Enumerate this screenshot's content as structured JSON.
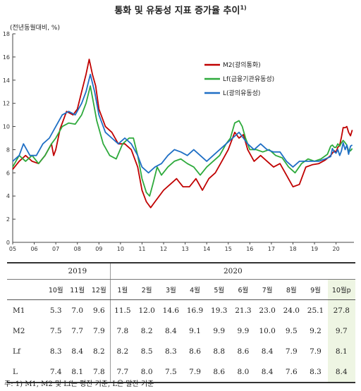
{
  "title": "통화 및 유동성 지표 증가율 추이",
  "title_note": "1)",
  "unit": "(전년동월대비, %)",
  "chart_data": {
    "type": "line",
    "xlabel": "",
    "ylabel": "",
    "ylim": [
      0,
      18
    ],
    "yticks": [
      0,
      2,
      4,
      6,
      8,
      10,
      12,
      14,
      16,
      18
    ],
    "xlim": [
      2005.0,
      2020.83
    ],
    "xticks": [
      "05",
      "06",
      "07",
      "08",
      "09",
      "10",
      "11",
      "12",
      "13",
      "14",
      "15",
      "16",
      "17",
      "18",
      "19",
      "20"
    ],
    "legend_position": "top-right",
    "series": [
      {
        "name": "M2(광의통화)",
        "color": "#c00000",
        "points": [
          [
            2005.0,
            6.3
          ],
          [
            2005.3,
            7.0
          ],
          [
            2005.6,
            7.5
          ],
          [
            2005.9,
            7.0
          ],
          [
            2006.2,
            6.8
          ],
          [
            2006.5,
            7.5
          ],
          [
            2006.8,
            8.5
          ],
          [
            2006.9,
            7.5
          ],
          [
            2007.0,
            8.0
          ],
          [
            2007.2,
            9.8
          ],
          [
            2007.5,
            11.3
          ],
          [
            2007.8,
            11.0
          ],
          [
            2008.0,
            11.5
          ],
          [
            2008.2,
            13.0
          ],
          [
            2008.4,
            14.5
          ],
          [
            2008.55,
            15.8
          ],
          [
            2008.7,
            14.5
          ],
          [
            2008.85,
            13.5
          ],
          [
            2009.0,
            11.5
          ],
          [
            2009.3,
            10.0
          ],
          [
            2009.6,
            9.5
          ],
          [
            2009.9,
            8.5
          ],
          [
            2010.2,
            8.5
          ],
          [
            2010.5,
            8.0
          ],
          [
            2010.8,
            6.5
          ],
          [
            2011.0,
            4.5
          ],
          [
            2011.2,
            3.5
          ],
          [
            2011.4,
            3.0
          ],
          [
            2011.6,
            3.5
          ],
          [
            2011.8,
            4.0
          ],
          [
            2012.0,
            4.5
          ],
          [
            2012.3,
            5.0
          ],
          [
            2012.6,
            5.5
          ],
          [
            2012.9,
            4.8
          ],
          [
            2013.2,
            4.8
          ],
          [
            2013.5,
            5.5
          ],
          [
            2013.8,
            4.5
          ],
          [
            2014.1,
            5.5
          ],
          [
            2014.4,
            6.0
          ],
          [
            2014.7,
            7.0
          ],
          [
            2015.0,
            8.0
          ],
          [
            2015.3,
            9.5
          ],
          [
            2015.5,
            9.0
          ],
          [
            2015.7,
            9.3
          ],
          [
            2015.9,
            8.0
          ],
          [
            2016.2,
            7.0
          ],
          [
            2016.5,
            7.5
          ],
          [
            2016.8,
            7.0
          ],
          [
            2017.1,
            6.5
          ],
          [
            2017.4,
            6.8
          ],
          [
            2017.7,
            5.8
          ],
          [
            2018.0,
            4.8
          ],
          [
            2018.3,
            5.0
          ],
          [
            2018.6,
            6.5
          ],
          [
            2018.9,
            6.7
          ],
          [
            2019.2,
            6.8
          ],
          [
            2019.5,
            7.1
          ],
          [
            2019.75,
            7.5
          ],
          [
            2019.83,
            7.7
          ],
          [
            2019.92,
            7.9
          ],
          [
            2020.0,
            7.8
          ],
          [
            2020.08,
            8.2
          ],
          [
            2020.17,
            8.4
          ],
          [
            2020.25,
            9.1
          ],
          [
            2020.33,
            9.9
          ],
          [
            2020.42,
            9.9
          ],
          [
            2020.5,
            10.0
          ],
          [
            2020.58,
            9.5
          ],
          [
            2020.67,
            9.2
          ],
          [
            2020.75,
            9.7
          ]
        ]
      },
      {
        "name": "Lf(금융기관유동성)",
        "color": "#2eaa3c",
        "points": [
          [
            2005.0,
            6.5
          ],
          [
            2005.3,
            7.5
          ],
          [
            2005.6,
            7.0
          ],
          [
            2005.9,
            7.5
          ],
          [
            2006.2,
            6.8
          ],
          [
            2006.5,
            7.5
          ],
          [
            2006.8,
            8.5
          ],
          [
            2007.0,
            9.0
          ],
          [
            2007.3,
            10.0
          ],
          [
            2007.6,
            10.3
          ],
          [
            2007.9,
            10.2
          ],
          [
            2008.2,
            11.0
          ],
          [
            2008.4,
            12.0
          ],
          [
            2008.6,
            13.5
          ],
          [
            2008.75,
            12.0
          ],
          [
            2008.9,
            10.5
          ],
          [
            2009.2,
            8.5
          ],
          [
            2009.5,
            7.5
          ],
          [
            2009.8,
            7.2
          ],
          [
            2010.1,
            8.5
          ],
          [
            2010.4,
            9.0
          ],
          [
            2010.6,
            9.0
          ],
          [
            2010.8,
            7.5
          ],
          [
            2011.0,
            5.5
          ],
          [
            2011.2,
            4.3
          ],
          [
            2011.35,
            4.0
          ],
          [
            2011.5,
            5.0
          ],
          [
            2011.7,
            6.5
          ],
          [
            2011.9,
            5.8
          ],
          [
            2012.2,
            6.5
          ],
          [
            2012.5,
            7.0
          ],
          [
            2012.8,
            7.2
          ],
          [
            2013.1,
            6.8
          ],
          [
            2013.4,
            6.5
          ],
          [
            2013.7,
            5.8
          ],
          [
            2014.0,
            6.5
          ],
          [
            2014.3,
            7.0
          ],
          [
            2014.6,
            7.5
          ],
          [
            2014.9,
            8.5
          ],
          [
            2015.1,
            9.0
          ],
          [
            2015.3,
            10.3
          ],
          [
            2015.5,
            10.5
          ],
          [
            2015.65,
            10.0
          ],
          [
            2015.8,
            9.0
          ],
          [
            2016.0,
            8.0
          ],
          [
            2016.3,
            8.0
          ],
          [
            2016.6,
            7.8
          ],
          [
            2016.9,
            8.0
          ],
          [
            2017.2,
            7.5
          ],
          [
            2017.5,
            7.3
          ],
          [
            2017.8,
            6.5
          ],
          [
            2018.1,
            6.0
          ],
          [
            2018.4,
            6.8
          ],
          [
            2018.7,
            7.2
          ],
          [
            2019.0,
            7.0
          ],
          [
            2019.3,
            7.2
          ],
          [
            2019.6,
            7.6
          ],
          [
            2019.75,
            8.3
          ],
          [
            2019.83,
            8.4
          ],
          [
            2019.92,
            8.2
          ],
          [
            2020.0,
            8.2
          ],
          [
            2020.08,
            8.5
          ],
          [
            2020.17,
            8.3
          ],
          [
            2020.25,
            8.6
          ],
          [
            2020.33,
            8.8
          ],
          [
            2020.42,
            8.6
          ],
          [
            2020.5,
            8.4
          ],
          [
            2020.58,
            7.9
          ],
          [
            2020.67,
            7.9
          ],
          [
            2020.75,
            8.1
          ]
        ]
      },
      {
        "name": "L(광의유동성)",
        "color": "#1f6fc5",
        "points": [
          [
            2005.0,
            7.0
          ],
          [
            2005.3,
            7.5
          ],
          [
            2005.5,
            8.5
          ],
          [
            2005.8,
            7.5
          ],
          [
            2006.1,
            7.5
          ],
          [
            2006.4,
            8.5
          ],
          [
            2006.7,
            9.0
          ],
          [
            2007.0,
            10.0
          ],
          [
            2007.3,
            11.0
          ],
          [
            2007.6,
            11.3
          ],
          [
            2007.9,
            11.0
          ],
          [
            2008.2,
            12.0
          ],
          [
            2008.4,
            13.0
          ],
          [
            2008.6,
            14.5
          ],
          [
            2008.8,
            13.0
          ],
          [
            2009.0,
            11.0
          ],
          [
            2009.3,
            9.5
          ],
          [
            2009.6,
            9.0
          ],
          [
            2009.9,
            8.5
          ],
          [
            2010.2,
            9.0
          ],
          [
            2010.5,
            8.5
          ],
          [
            2010.8,
            7.5
          ],
          [
            2011.0,
            6.5
          ],
          [
            2011.3,
            6.0
          ],
          [
            2011.6,
            6.5
          ],
          [
            2011.9,
            6.8
          ],
          [
            2012.2,
            7.5
          ],
          [
            2012.5,
            8.0
          ],
          [
            2012.8,
            7.8
          ],
          [
            2013.1,
            7.5
          ],
          [
            2013.4,
            8.0
          ],
          [
            2013.7,
            7.5
          ],
          [
            2014.0,
            7.0
          ],
          [
            2014.3,
            7.5
          ],
          [
            2014.6,
            8.0
          ],
          [
            2014.9,
            8.5
          ],
          [
            2015.2,
            9.0
          ],
          [
            2015.5,
            9.5
          ],
          [
            2015.7,
            9.0
          ],
          [
            2015.9,
            8.5
          ],
          [
            2016.2,
            8.0
          ],
          [
            2016.5,
            8.5
          ],
          [
            2016.8,
            8.0
          ],
          [
            2017.1,
            7.8
          ],
          [
            2017.4,
            7.8
          ],
          [
            2017.7,
            7.0
          ],
          [
            2018.0,
            6.5
          ],
          [
            2018.3,
            7.0
          ],
          [
            2018.6,
            7.0
          ],
          [
            2018.9,
            7.0
          ],
          [
            2019.2,
            7.0
          ],
          [
            2019.5,
            7.2
          ],
          [
            2019.75,
            7.4
          ],
          [
            2019.83,
            8.1
          ],
          [
            2019.92,
            7.8
          ],
          [
            2020.0,
            7.7
          ],
          [
            2020.08,
            8.0
          ],
          [
            2020.17,
            7.5
          ],
          [
            2020.25,
            7.9
          ],
          [
            2020.33,
            8.6
          ],
          [
            2020.42,
            8.0
          ],
          [
            2020.5,
            8.4
          ],
          [
            2020.58,
            7.6
          ],
          [
            2020.67,
            8.3
          ],
          [
            2020.75,
            8.4
          ]
        ]
      }
    ]
  },
  "table": {
    "years": [
      "2019",
      "2020"
    ],
    "months": [
      "10월",
      "11월",
      "12월",
      "1월",
      "2월",
      "3월",
      "4월",
      "5월",
      "6월",
      "7월",
      "8월",
      "9월",
      "10월p"
    ],
    "rows": [
      {
        "label": "M1",
        "values": [
          "5.3",
          "7.0",
          "9.6",
          "11.5",
          "12.0",
          "14.6",
          "16.9",
          "19.3",
          "21.3",
          "23.0",
          "24.0",
          "25.1",
          "27.8"
        ]
      },
      {
        "label": "M2",
        "values": [
          "7.5",
          "7.7",
          "7.9",
          "7.8",
          "8.2",
          "8.4",
          "9.1",
          "9.9",
          "9.9",
          "10.0",
          "9.5",
          "9.2",
          "9.7"
        ]
      },
      {
        "label": "Lf",
        "values": [
          "8.3",
          "8.4",
          "8.2",
          "8.2",
          "8.5",
          "8.3",
          "8.6",
          "8.8",
          "8.6",
          "8.4",
          "7.9",
          "7.9",
          "8.1"
        ]
      },
      {
        "label": "L",
        "values": [
          "7.4",
          "8.1",
          "7.8",
          "7.7",
          "8.0",
          "7.5",
          "7.9",
          "8.6",
          "8.0",
          "8.4",
          "7.6",
          "8.3",
          "8.4"
        ]
      }
    ]
  },
  "note": "주: 1) M1, M2 및 Lf는 평잔 기준, L은 말잔 기준"
}
